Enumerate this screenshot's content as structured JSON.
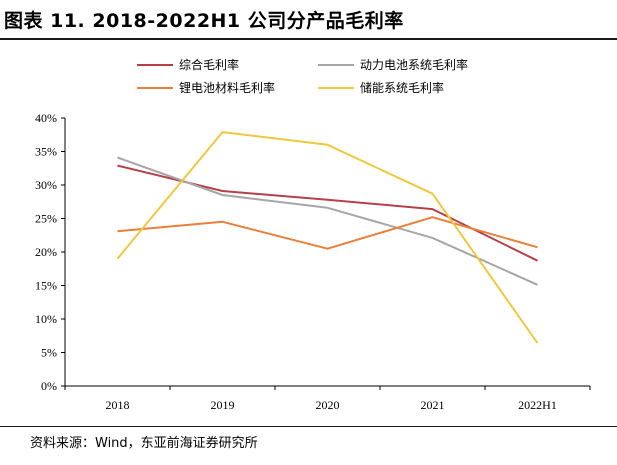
{
  "title": "图表 11. 2018-2022H1 公司分产品毛利率",
  "source": "资料来源：Wind，东亚前海证券研究所",
  "chart_data": {
    "type": "line",
    "title": "图表 11. 2018-2022H1 公司分产品毛利率",
    "categories": [
      "2018",
      "2019",
      "2020",
      "2021",
      "2022H1"
    ],
    "ylim": [
      0,
      40
    ],
    "yticks": [
      "0%",
      "5%",
      "10%",
      "15%",
      "20%",
      "25%",
      "30%",
      "35%",
      "40%"
    ],
    "ytick_values": [
      0,
      5,
      10,
      15,
      20,
      25,
      30,
      35,
      40
    ],
    "legend_position": "top",
    "series": [
      {
        "name": "综合毛利率",
        "color": "#b5404a",
        "values": [
          32.9,
          29.1,
          27.8,
          26.4,
          18.7
        ]
      },
      {
        "name": "动力电池系统毛利率",
        "color": "#a6a6a6",
        "values": [
          34.1,
          28.5,
          26.6,
          22.1,
          15.1
        ]
      },
      {
        "name": "锂电池材料毛利率",
        "color": "#e8803a",
        "values": [
          23.1,
          24.5,
          20.5,
          25.2,
          20.7
        ]
      },
      {
        "name": "储能系统毛利率",
        "color": "#ecc93e",
        "values": [
          19.0,
          37.9,
          36.0,
          28.7,
          6.4
        ]
      }
    ]
  }
}
